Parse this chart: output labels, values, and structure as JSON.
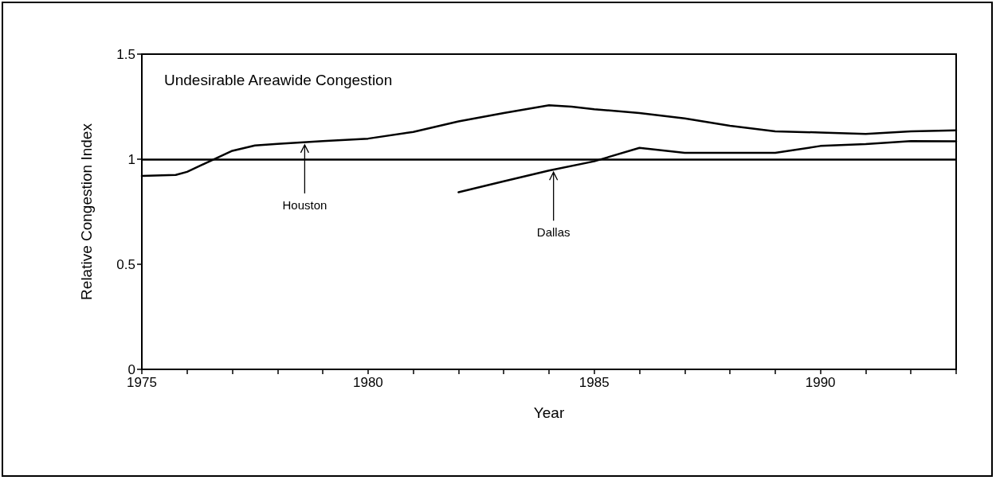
{
  "chart_data": {
    "type": "line",
    "xlabel": "Year",
    "ylabel": "Relative Congestion Index",
    "xlim": [
      1975,
      1993
    ],
    "ylim": [
      0,
      1.5
    ],
    "xticks": [
      1975,
      {
        "value": 1976,
        "label": null
      },
      {
        "value": 1977,
        "label": null
      },
      {
        "value": 1978,
        "label": null
      },
      {
        "value": 1979,
        "label": null
      },
      1980,
      {
        "value": 1981,
        "label": null
      },
      {
        "value": 1982,
        "label": null
      },
      {
        "value": 1983,
        "label": null
      },
      {
        "value": 1984,
        "label": null
      },
      1985,
      {
        "value": 1986,
        "label": null
      },
      {
        "value": 1987,
        "label": null
      },
      {
        "value": 1988,
        "label": null
      },
      {
        "value": 1989,
        "label": null
      },
      1990,
      {
        "value": 1991,
        "label": null
      },
      {
        "value": 1992,
        "label": null
      },
      {
        "value": 1993,
        "label": null
      }
    ],
    "yticks": [
      0,
      0.5,
      1,
      1.5
    ],
    "grid": false,
    "marker": "none",
    "line_style": "solid",
    "series": [
      {
        "color": "#000000",
        "x": [
          1975,
          1975.75,
          1976,
          1976.5,
          1977,
          1977.5,
          1978,
          1979,
          1980,
          1981,
          1982,
          1983,
          1984,
          1984.5,
          1985,
          1986,
          1987,
          1988,
          1989,
          1990,
          1991,
          1992,
          1993
        ],
        "values": [
          0.92,
          0.925,
          0.94,
          0.99,
          1.04,
          1.065,
          1.073,
          1.086,
          1.098,
          1.13,
          1.18,
          1.22,
          1.257,
          1.25,
          1.238,
          1.22,
          1.194,
          1.159,
          1.133,
          1.127,
          1.12,
          1.133,
          1.137
        ]
      },
      {
        "color": "#000000",
        "x": [
          1982,
          1983,
          1984,
          1985,
          1986,
          1987,
          1988,
          1989,
          1990,
          1991,
          1992,
          1993
        ],
        "values": [
          0.843,
          0.895,
          0.946,
          0.99,
          1.054,
          1.03,
          1.03,
          1.03,
          1.063,
          1.072,
          1.086,
          1.085
        ]
      }
    ],
    "ref_lines": [
      {
        "axis": "y",
        "value": 1,
        "color": "#000000",
        "line_style": "solid"
      }
    ],
    "annotations": [
      "Undesirable Areawide Congestion",
      {
        "text": "Houston",
        "x": 1978.6,
        "y": 1.08
      },
      {
        "text": "Dallas",
        "x": 1984.1,
        "y": 0.95
      }
    ]
  }
}
